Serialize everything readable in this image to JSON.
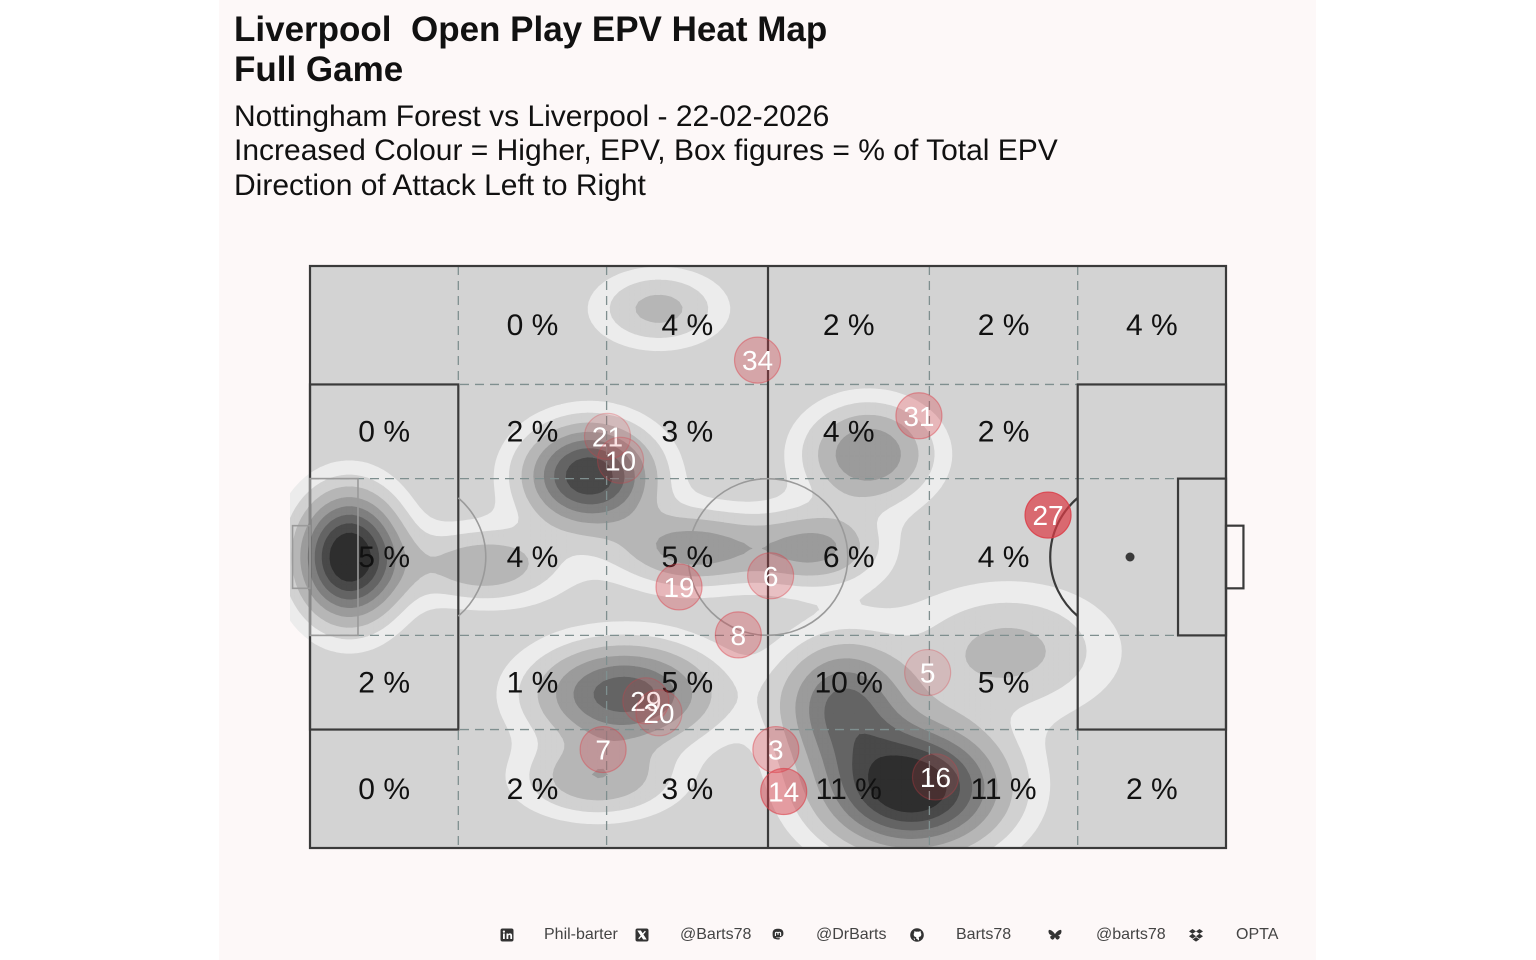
{
  "header": {
    "title_line1": "Liverpool  Open Play EPV Heat Map",
    "title_line2": "Full Game",
    "subtitle_line1": "Nottingham Forest vs Liverpool - 22-02-2026",
    "subtitle_line2": "Increased Colour = Higher, EPV, Box figures = % of Total EPV",
    "subtitle_line3": "Direction of Attack Left to Right"
  },
  "chart_data": {
    "type": "heatmap",
    "pitch": {
      "length": 105,
      "width": 68,
      "attack_direction": "left-to-right"
    },
    "zones": {
      "x_bounds": [
        0,
        17,
        34,
        52.5,
        71,
        88,
        105
      ],
      "y_bounds": [
        0,
        13.84,
        24.84,
        43.16,
        54.16,
        68
      ],
      "cells": [
        {
          "label": "0 %",
          "col": 1,
          "row": 0
        },
        {
          "label": "4 %",
          "col": 2,
          "row": 0
        },
        {
          "label": "2 %",
          "col": 3,
          "row": 0
        },
        {
          "label": "2 %",
          "col": 4,
          "row": 0
        },
        {
          "label": "4 %",
          "col": 5,
          "row": 0
        },
        {
          "label": "0 %",
          "col": 0,
          "row": 1
        },
        {
          "label": "2 %",
          "col": 1,
          "row": 1
        },
        {
          "label": "3 %",
          "col": 2,
          "row": 1
        },
        {
          "label": "4 %",
          "col": 3,
          "row": 1
        },
        {
          "label": "2 %",
          "col": 4,
          "row": 1
        },
        {
          "label": "5 %",
          "col": 0,
          "row": 2
        },
        {
          "label": "4 %",
          "col": 1,
          "row": 2
        },
        {
          "label": "5 %",
          "col": 2,
          "row": 2
        },
        {
          "label": "6 %",
          "col": 3,
          "row": 2
        },
        {
          "label": "4 %",
          "col": 4,
          "row": 2
        },
        {
          "label": "2 %",
          "col": 0,
          "row": 3
        },
        {
          "label": "1 %",
          "col": 1,
          "row": 3
        },
        {
          "label": "5 %",
          "col": 2,
          "row": 3
        },
        {
          "label": "10 %",
          "col": 3,
          "row": 3
        },
        {
          "label": "5 %",
          "col": 4,
          "row": 3
        },
        {
          "label": "0 %",
          "col": 0,
          "row": 4
        },
        {
          "label": "2 %",
          "col": 1,
          "row": 4
        },
        {
          "label": "3 %",
          "col": 2,
          "row": 4
        },
        {
          "label": "11 %",
          "col": 3,
          "row": 4
        },
        {
          "label": "11 %",
          "col": 4,
          "row": 4
        },
        {
          "label": "2 %",
          "col": 5,
          "row": 4
        }
      ]
    },
    "density_peaks": [
      {
        "x": 4.5,
        "y": 34,
        "intensity": 1.0,
        "sx": 4,
        "sy": 5
      },
      {
        "x": 32,
        "y": 24.5,
        "intensity": 0.85,
        "sx": 5,
        "sy": 4
      },
      {
        "x": 69,
        "y": 61,
        "intensity": 1.0,
        "sx": 7,
        "sy": 5
      },
      {
        "x": 36,
        "y": 50,
        "intensity": 0.7,
        "sx": 7,
        "sy": 4
      },
      {
        "x": 61,
        "y": 51,
        "intensity": 0.6,
        "sx": 5,
        "sy": 5
      },
      {
        "x": 64,
        "y": 22,
        "intensity": 0.5,
        "sx": 5,
        "sy": 4
      },
      {
        "x": 44,
        "y": 33,
        "intensity": 0.45,
        "sx": 6,
        "sy": 3
      },
      {
        "x": 58,
        "y": 33,
        "intensity": 0.4,
        "sx": 5,
        "sy": 3
      },
      {
        "x": 20,
        "y": 35,
        "intensity": 0.35,
        "sx": 6,
        "sy": 3
      },
      {
        "x": 33,
        "y": 60,
        "intensity": 0.35,
        "sx": 6,
        "sy": 3
      },
      {
        "x": 40,
        "y": 5,
        "intensity": 0.3,
        "sx": 5,
        "sy": 3
      },
      {
        "x": 80,
        "y": 45,
        "intensity": 0.3,
        "sx": 8,
        "sy": 5
      }
    ],
    "players": [
      {
        "number": "34",
        "x": 51.3,
        "y": 11.0,
        "alpha": 0.3
      },
      {
        "number": "31",
        "x": 69.8,
        "y": 17.5,
        "alpha": 0.3
      },
      {
        "number": "21",
        "x": 34.1,
        "y": 19.9,
        "alpha": 0.15
      },
      {
        "number": "10",
        "x": 35.6,
        "y": 22.7,
        "alpha": 0.15
      },
      {
        "number": "27",
        "x": 84.6,
        "y": 29.1,
        "alpha": 0.7
      },
      {
        "number": "6",
        "x": 52.8,
        "y": 36.2,
        "alpha": 0.25
      },
      {
        "number": "19",
        "x": 42.3,
        "y": 37.5,
        "alpha": 0.3
      },
      {
        "number": "8",
        "x": 49.1,
        "y": 43.1,
        "alpha": 0.3
      },
      {
        "number": "5",
        "x": 70.8,
        "y": 47.5,
        "alpha": 0.15
      },
      {
        "number": "29",
        "x": 38.5,
        "y": 50.8,
        "alpha": 0.15
      },
      {
        "number": "20",
        "x": 40.0,
        "y": 52.2,
        "alpha": 0.15
      },
      {
        "number": "7",
        "x": 33.6,
        "y": 56.5,
        "alpha": 0.25
      },
      {
        "number": "3",
        "x": 53.4,
        "y": 56.5,
        "alpha": 0.3
      },
      {
        "number": "16",
        "x": 71.7,
        "y": 59.7,
        "alpha": 0.15
      },
      {
        "number": "14",
        "x": 54.3,
        "y": 61.4,
        "alpha": 0.45
      }
    ]
  },
  "footer": {
    "items": [
      {
        "icon": "linkedin-icon",
        "text": "Phil-barter"
      },
      {
        "icon": "x-twitter-icon",
        "text": "@Barts78"
      },
      {
        "icon": "mastodon-icon",
        "text": "@DrBarts"
      },
      {
        "icon": "github-icon",
        "text": "Barts78"
      },
      {
        "icon": "bluesky-icon",
        "text": "@barts78"
      },
      {
        "icon": "dropbox-icon",
        "text": "OPTA"
      }
    ]
  },
  "colors": {
    "pitch_fill": "#d3d3d3",
    "panel_bg": "#fdf8f8",
    "density_dark": "#2e2e2e",
    "density_light": "#ececec",
    "player_dot": "#dc3c46",
    "lines": "#3a3a3a",
    "zone_dash": "#7f8f8f"
  }
}
